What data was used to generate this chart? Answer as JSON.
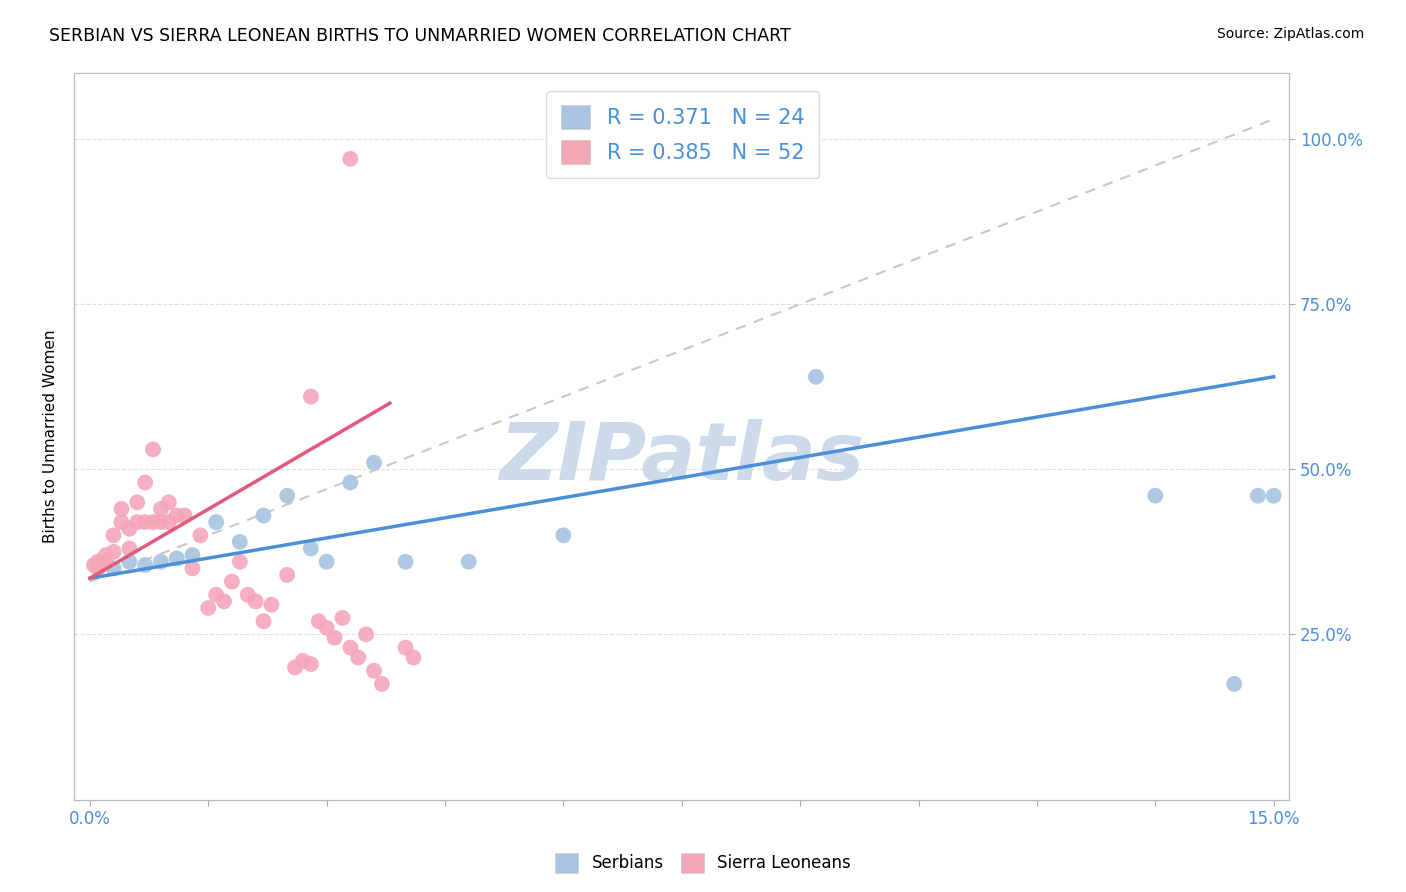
{
  "title": "SERBIAN VS SIERRA LEONEAN BIRTHS TO UNMARRIED WOMEN CORRELATION CHART",
  "source": "Source: ZipAtlas.com",
  "ylabel": "Births to Unmarried Women",
  "xlim": [
    0.0,
    0.15
  ],
  "ylim": [
    0.0,
    1.1
  ],
  "xtick_pos": [
    0.0,
    0.015,
    0.03,
    0.045,
    0.06,
    0.075,
    0.09,
    0.105,
    0.12,
    0.135,
    0.15
  ],
  "xticklabels": [
    "0.0%",
    "",
    "",
    "",
    "",
    "",
    "",
    "",
    "",
    "",
    "15.0%"
  ],
  "ytick_pos": [
    0.25,
    0.5,
    0.75,
    1.0
  ],
  "yticklabels": [
    "25.0%",
    "50.0%",
    "75.0%",
    "100.0%"
  ],
  "serbian_color": "#a8c4e0",
  "sierraleonean_color": "#f4a7b9",
  "serbian_line_color": "#4a90d9",
  "sierraleonean_line_color": "#e05a7a",
  "ref_line_color": "#c8c8c8",
  "axis_color": "#4a90d9",
  "watermark": "ZIPatlas",
  "watermark_color": "#ccdaec",
  "R_serbian": 0.371,
  "N_serbian": 24,
  "R_sierraleonean": 0.385,
  "N_sierraleonean": 52,
  "serbian_x": [
    0.001,
    0.002,
    0.003,
    0.005,
    0.007,
    0.009,
    0.011,
    0.013,
    0.016,
    0.019,
    0.022,
    0.025,
    0.028,
    0.03,
    0.033,
    0.036,
    0.04,
    0.048,
    0.06,
    0.092,
    0.135,
    0.145,
    0.148,
    0.15
  ],
  "serbian_y": [
    0.355,
    0.36,
    0.35,
    0.36,
    0.355,
    0.36,
    0.365,
    0.37,
    0.42,
    0.39,
    0.43,
    0.46,
    0.38,
    0.36,
    0.48,
    0.51,
    0.36,
    0.36,
    0.4,
    0.64,
    0.46,
    0.175,
    0.46,
    0.46
  ],
  "sl_x": [
    0.0005,
    0.001,
    0.001,
    0.0015,
    0.002,
    0.002,
    0.003,
    0.003,
    0.004,
    0.004,
    0.005,
    0.005,
    0.006,
    0.006,
    0.007,
    0.007,
    0.008,
    0.008,
    0.009,
    0.009,
    0.01,
    0.01,
    0.011,
    0.012,
    0.013,
    0.014,
    0.015,
    0.016,
    0.017,
    0.018,
    0.019,
    0.02,
    0.021,
    0.022,
    0.023,
    0.025,
    0.026,
    0.027,
    0.028,
    0.029,
    0.03,
    0.031,
    0.032,
    0.033,
    0.034,
    0.035,
    0.036,
    0.037,
    0.04,
    0.041,
    0.028,
    0.033
  ],
  "sl_y": [
    0.355,
    0.35,
    0.36,
    0.355,
    0.36,
    0.37,
    0.375,
    0.4,
    0.42,
    0.44,
    0.38,
    0.41,
    0.42,
    0.45,
    0.42,
    0.48,
    0.42,
    0.53,
    0.42,
    0.44,
    0.42,
    0.45,
    0.43,
    0.43,
    0.35,
    0.4,
    0.29,
    0.31,
    0.3,
    0.33,
    0.36,
    0.31,
    0.3,
    0.27,
    0.295,
    0.34,
    0.2,
    0.21,
    0.205,
    0.27,
    0.26,
    0.245,
    0.275,
    0.23,
    0.215,
    0.25,
    0.195,
    0.175,
    0.23,
    0.215,
    0.61,
    0.97
  ]
}
